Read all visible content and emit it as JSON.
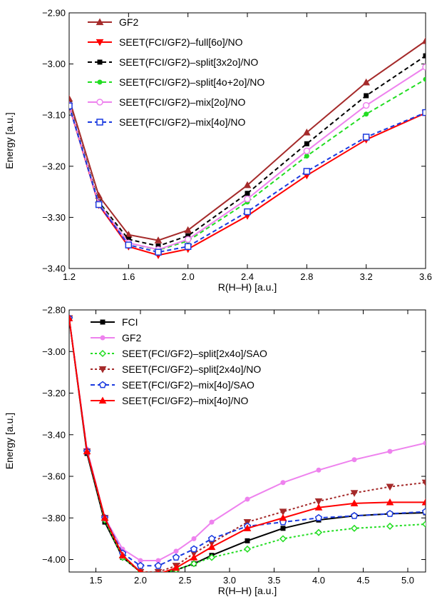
{
  "chart_data": [
    {
      "type": "line",
      "xlabel": "R(H–H) [a.u.]",
      "ylabel": "Energy [a.u.]",
      "xlim": [
        1.2,
        3.6
      ],
      "ylim": [
        -3.4,
        -2.9
      ],
      "xticks": [
        1.2,
        1.6,
        2.0,
        2.4,
        2.8,
        3.2,
        3.6
      ],
      "xtick_labels": [
        "1.2",
        "1.6",
        "2.0",
        "2.4",
        "2.8",
        "3.2",
        "3.6"
      ],
      "yticks": [
        -3.4,
        -3.3,
        -3.2,
        -3.1,
        -3.0,
        -2.9
      ],
      "ytick_labels": [
        "−3.40",
        "−3.30",
        "−3.20",
        "−3.10",
        "−3.00",
        "−2.90"
      ],
      "legend_position": "top-left",
      "series": [
        {
          "name": "GF2",
          "color": "#a52a2a",
          "dash": "",
          "marker": "triangle-up",
          "x": [
            1.2,
            1.4,
            1.6,
            1.8,
            2.0,
            2.4,
            2.8,
            3.2,
            3.6
          ],
          "y": [
            -3.068,
            -3.258,
            -3.334,
            -3.345,
            -3.325,
            -3.237,
            -3.134,
            -3.036,
            -2.955
          ]
        },
        {
          "name": "SEET(FCI/GF2)–full[6o]/NO",
          "color": "#ff0000",
          "dash": "",
          "marker": "triangle-down",
          "x": [
            1.2,
            1.4,
            1.6,
            1.8,
            2.0,
            2.4,
            2.8,
            3.2,
            3.6
          ],
          "y": [
            -3.082,
            -3.276,
            -3.357,
            -3.374,
            -3.362,
            -3.297,
            -3.218,
            -3.148,
            -3.096
          ]
        },
        {
          "name": "SEET(FCI/GF2)–split[3x2o]/NO",
          "color": "#000000",
          "dash": "6,4",
          "marker": "square",
          "x": [
            1.2,
            1.4,
            1.6,
            1.8,
            2.0,
            2.4,
            2.8,
            3.2,
            3.6
          ],
          "y": [
            -3.078,
            -3.27,
            -3.343,
            -3.356,
            -3.336,
            -3.253,
            -3.156,
            -3.062,
            -2.984
          ]
        },
        {
          "name": "SEET(FCI/GF2)–split[4o+2o]/NO",
          "color": "#22dd22",
          "dash": "6,4",
          "marker": "circle",
          "x": [
            1.2,
            1.4,
            1.6,
            1.8,
            2.0,
            2.4,
            2.8,
            3.2,
            3.6
          ],
          "y": [
            -3.08,
            -3.272,
            -3.35,
            -3.364,
            -3.346,
            -3.27,
            -3.18,
            -3.098,
            -3.03
          ]
        },
        {
          "name": "SEET(FCI/GF2)–mix[2o]/NO",
          "color": "#ee82ee",
          "dash": "",
          "marker": "circle-open",
          "x": [
            1.2,
            1.4,
            1.6,
            1.8,
            2.0,
            2.4,
            2.8,
            3.2,
            3.6
          ],
          "y": [
            -3.08,
            -3.273,
            -3.35,
            -3.363,
            -3.343,
            -3.264,
            -3.17,
            -3.081,
            -3.006
          ]
        },
        {
          "name": "SEET(FCI/GF2)–mix[4o]/NO",
          "color": "#1a3ae0",
          "dash": "6,4",
          "marker": "square-open",
          "x": [
            1.2,
            1.4,
            1.6,
            1.8,
            2.0,
            2.4,
            2.8,
            3.2,
            3.6
          ],
          "y": [
            -3.082,
            -3.275,
            -3.354,
            -3.368,
            -3.357,
            -3.289,
            -3.21,
            -3.143,
            -3.095
          ]
        }
      ]
    },
    {
      "type": "line",
      "xlabel": "R(H–H) [a.u.]",
      "ylabel": "Energy [a.u.]",
      "xlim": [
        1.2,
        5.2
      ],
      "ylim": [
        -4.06,
        -2.8
      ],
      "xticks": [
        1.5,
        2.0,
        2.5,
        3.0,
        3.5,
        4.0,
        4.5,
        5.0
      ],
      "xtick_labels": [
        "1.5",
        "2.0",
        "2.5",
        "3.0",
        "3.5",
        "4.0",
        "4.5",
        "5.0"
      ],
      "yticks": [
        -4.0,
        -3.8,
        -3.6,
        -3.4,
        -3.2,
        -3.0,
        -2.8
      ],
      "ytick_labels": [
        "−4.00",
        "−3.80",
        "−3.60",
        "−3.40",
        "−3.20",
        "−3.00",
        "−2.80"
      ],
      "legend_position": "top-left",
      "series": [
        {
          "name": "FCI",
          "color": "#000000",
          "dash": "",
          "marker": "square",
          "x": [
            1.2,
            1.4,
            1.6,
            1.8,
            2.0,
            2.2,
            2.4,
            2.6,
            2.8,
            3.2,
            3.6,
            4.0,
            4.4,
            4.8,
            5.2
          ],
          "y": [
            -2.84,
            -3.49,
            -3.82,
            -3.99,
            -4.06,
            -4.07,
            -4.05,
            -4.02,
            -3.98,
            -3.91,
            -3.85,
            -3.81,
            -3.79,
            -3.78,
            -3.775
          ]
        },
        {
          "name": "GF2",
          "color": "#ee82ee",
          "dash": "",
          "marker": "circle",
          "x": [
            1.2,
            1.4,
            1.6,
            1.8,
            2.0,
            2.2,
            2.4,
            2.6,
            2.8,
            3.2,
            3.6,
            4.0,
            4.4,
            4.8,
            5.2
          ],
          "y": [
            -2.84,
            -3.47,
            -3.8,
            -3.95,
            -4.005,
            -4.005,
            -3.96,
            -3.9,
            -3.82,
            -3.71,
            -3.63,
            -3.57,
            -3.52,
            -3.48,
            -3.44
          ]
        },
        {
          "name": "SEET(FCI/GF2)–split[2x4o]/SAO",
          "color": "#22dd22",
          "dash": "3,3",
          "marker": "diamond-open",
          "x": [
            1.2,
            1.4,
            1.6,
            1.8,
            2.0,
            2.2,
            2.4,
            2.6,
            2.8,
            3.2,
            3.6,
            4.0,
            4.4,
            4.8,
            5.2
          ],
          "y": [
            -2.84,
            -3.48,
            -3.81,
            -3.99,
            -4.06,
            -4.07,
            -4.05,
            -4.02,
            -3.99,
            -3.95,
            -3.9,
            -3.87,
            -3.85,
            -3.84,
            -3.83
          ]
        },
        {
          "name": "SEET(FCI/GF2)–split[2x4o]/NO",
          "color": "#a52a2a",
          "dash": "3,3",
          "marker": "triangle-down",
          "x": [
            1.2,
            1.4,
            1.6,
            1.8,
            2.0,
            2.2,
            2.4,
            2.6,
            2.8,
            3.2,
            3.6,
            4.0,
            4.4,
            4.8,
            5.2
          ],
          "y": [
            -2.84,
            -3.48,
            -3.8,
            -3.98,
            -4.06,
            -4.06,
            -4.03,
            -3.97,
            -3.92,
            -3.82,
            -3.77,
            -3.72,
            -3.68,
            -3.65,
            -3.63
          ]
        },
        {
          "name": "SEET(FCI/GF2)–mix[4o]/SAO",
          "color": "#1a3ae0",
          "dash": "6,4",
          "marker": "pentagon-open",
          "x": [
            1.2,
            1.4,
            1.6,
            1.8,
            2.0,
            2.2,
            2.4,
            2.6,
            2.8,
            3.2,
            3.6,
            4.0,
            4.4,
            4.8,
            5.2
          ],
          "y": [
            -2.84,
            -3.48,
            -3.8,
            -3.97,
            -4.03,
            -4.03,
            -3.99,
            -3.95,
            -3.9,
            -3.84,
            -3.82,
            -3.8,
            -3.79,
            -3.78,
            -3.77
          ]
        },
        {
          "name": "SEET(FCI/GF2)–mix[4o]/NO",
          "color": "#ff0000",
          "dash": "",
          "marker": "triangle-up",
          "x": [
            1.2,
            1.4,
            1.6,
            1.8,
            2.0,
            2.2,
            2.4,
            2.6,
            2.8,
            3.2,
            3.6,
            4.0,
            4.4,
            4.8,
            5.2
          ],
          "y": [
            -2.84,
            -3.48,
            -3.8,
            -3.98,
            -4.06,
            -4.07,
            -4.04,
            -3.99,
            -3.94,
            -3.85,
            -3.8,
            -3.75,
            -3.73,
            -3.725,
            -3.725
          ]
        }
      ]
    }
  ]
}
